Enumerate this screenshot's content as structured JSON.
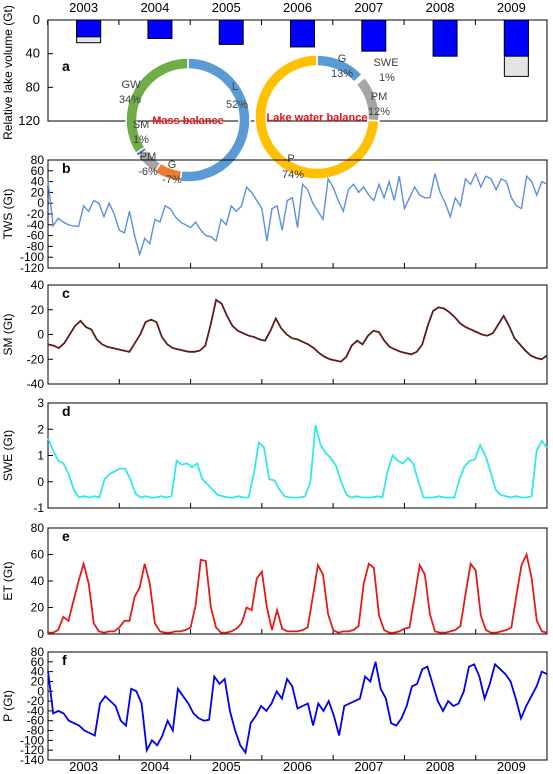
{
  "chart_data": [
    {
      "panel": "a",
      "type": "bar",
      "ylabel": "Relative lake volume (Gt)",
      "ylim": [
        0,
        120
      ],
      "yticks": [
        0,
        40,
        80,
        120
      ],
      "categories": [
        "2003",
        "2004",
        "2005",
        "2006",
        "2007",
        "2008",
        "2009"
      ],
      "series": [
        {
          "values": [
            20,
            22,
            29,
            32,
            37,
            43,
            43
          ],
          "color": "#0000ff"
        },
        {
          "values": [
            7,
            0,
            0,
            0,
            0,
            0,
            24
          ],
          "color": "#e4e4e4"
        }
      ],
      "pies": [
        {
          "title": "Mass balance",
          "title_color": "#e3141b",
          "slices": [
            {
              "label": "L",
              "pct_label": "52%",
              "value": 52,
              "color": "#5b9bd5"
            },
            {
              "label": "G",
              "pct_label": "-7%",
              "value": 7,
              "color": "#ed7d31"
            },
            {
              "label": "PM",
              "pct_label": "-6%",
              "value": 6,
              "color": "#a5a5a5"
            },
            {
              "label": "SM",
              "pct_label": "1%",
              "value": 1,
              "color": "#4472c4"
            },
            {
              "label": "GW",
              "pct_label": "34%",
              "value": 34,
              "color": "#70ad47"
            }
          ]
        },
        {
          "title": "Lake water balance",
          "title_color": "#e3141b",
          "slices": [
            {
              "label": "G",
              "pct_label": "13%",
              "value": 13,
              "color": "#5b9bd5"
            },
            {
              "label": "SWE",
              "pct_label": "1%",
              "value": 1,
              "color": "#ffffff"
            },
            {
              "label": "PM",
              "pct_label": "12%",
              "value": 12,
              "color": "#a5a5a5"
            },
            {
              "label": "P",
              "pct_label": "74%",
              "value": 74,
              "color": "#ffc000"
            }
          ]
        }
      ]
    },
    {
      "panel": "b",
      "type": "line",
      "ylabel": "TWS (Gt)",
      "ylim": [
        -120,
        80
      ],
      "yticks": [
        80,
        60,
        40,
        20,
        0,
        -20,
        -40,
        -60,
        -80,
        -100,
        -120
      ],
      "color": "#5b8fe0",
      "values": [
        41,
        -42,
        -28,
        -35,
        -40,
        -42,
        -43,
        -5,
        -15,
        5,
        0,
        -25,
        0,
        -20,
        -50,
        -55,
        -15,
        -60,
        -95,
        -65,
        -75,
        -30,
        -35,
        -5,
        -10,
        -25,
        -35,
        -40,
        -45,
        -35,
        -50,
        -60,
        -62,
        -70,
        -30,
        -40,
        -5,
        -15,
        -5,
        30,
        20,
        5,
        -10,
        -70,
        -10,
        -5,
        -50,
        5,
        10,
        -45,
        35,
        25,
        0,
        -15,
        -30,
        45,
        30,
        5,
        -15,
        25,
        35,
        20,
        30,
        15,
        5,
        35,
        10,
        40,
        5,
        50,
        -10,
        10,
        30,
        15,
        10,
        10,
        55,
        20,
        0,
        -25,
        10,
        -5,
        45,
        35,
        55,
        30,
        50,
        45,
        25,
        45,
        40,
        10,
        -5,
        -10,
        50,
        40,
        15,
        40,
        35
      ]
    },
    {
      "panel": "c",
      "type": "line",
      "ylabel": "SM (Gt)",
      "ylim": [
        -40,
        40
      ],
      "yticks": [
        40,
        20,
        0,
        -20,
        -40
      ],
      "color": "#5c1c1c",
      "values": [
        -8,
        -9,
        -11,
        -7,
        0,
        7,
        11,
        6,
        4,
        -4,
        -8,
        -10,
        -11,
        -12,
        -13,
        -14,
        -7,
        0,
        10,
        12,
        10,
        -2,
        -8,
        -11,
        -12,
        -13,
        -14,
        -14,
        -13,
        -9,
        8,
        28,
        25,
        15,
        7,
        3,
        1,
        -1,
        -2,
        -4,
        -5,
        3,
        13,
        5,
        0,
        -3,
        -4,
        -6,
        -8,
        -11,
        -15,
        -18,
        -20,
        -21,
        -22,
        -18,
        -9,
        -5,
        -8,
        -1,
        3,
        2,
        -5,
        -10,
        -12,
        -14,
        -15,
        -16,
        -14,
        -8,
        7,
        19,
        22,
        21,
        18,
        14,
        9,
        6,
        4,
        2,
        0,
        -1,
        1,
        8,
        15,
        7,
        -3,
        -8,
        -13,
        -17,
        -19,
        -20,
        -17
      ]
    },
    {
      "panel": "d",
      "type": "line",
      "ylabel": "SWE (Gt)",
      "ylim": [
        -1,
        3
      ],
      "yticks": [
        3,
        2,
        1,
        0,
        -1
      ],
      "color": "#33e8e8",
      "values": [
        1.65,
        1.2,
        0.8,
        0.7,
        0.3,
        -0.3,
        -0.6,
        -0.55,
        -0.6,
        -0.55,
        -0.6,
        0.1,
        0.3,
        0.4,
        0.5,
        0.5,
        0.1,
        -0.45,
        -0.6,
        -0.55,
        -0.6,
        -0.6,
        -0.55,
        -0.6,
        -0.55,
        0.8,
        0.65,
        0.7,
        0.55,
        0.7,
        0.1,
        -0.1,
        -0.3,
        -0.5,
        -0.55,
        -0.6,
        -0.6,
        -0.55,
        -0.6,
        -0.6,
        0.3,
        1.5,
        1.3,
        0.1,
        0.05,
        -0.3,
        -0.55,
        -0.6,
        -0.6,
        -0.6,
        -0.55,
        0.0,
        2.15,
        1.4,
        1.1,
        0.9,
        0.6,
        0.0,
        -0.5,
        -0.6,
        -0.55,
        -0.6,
        -0.6,
        -0.6,
        -0.55,
        -0.6,
        0.4,
        1.0,
        0.8,
        0.7,
        0.9,
        0.7,
        0.0,
        -0.6,
        -0.6,
        -0.6,
        -0.55,
        -0.6,
        -0.6,
        -0.6,
        0.1,
        0.6,
        0.8,
        0.85,
        1.4,
        1.0,
        0.4,
        -0.3,
        -0.5,
        -0.55,
        -0.6,
        -0.55,
        -0.6,
        -0.6,
        -0.55,
        1.2,
        1.55,
        1.3
      ]
    },
    {
      "panel": "e",
      "type": "line",
      "ylabel": "ET (Gt)",
      "ylim": [
        0,
        80
      ],
      "yticks": [
        80,
        60,
        40,
        20,
        0
      ],
      "color": "#e31b1b",
      "values": [
        1,
        1,
        3,
        13,
        10,
        25,
        40,
        53,
        38,
        8,
        2,
        1,
        2,
        2,
        5,
        10,
        10,
        28,
        35,
        53,
        38,
        8,
        2,
        1,
        1,
        2,
        2,
        3,
        5,
        22,
        56,
        55,
        20,
        5,
        1,
        1,
        2,
        4,
        8,
        20,
        18,
        42,
        47,
        20,
        3,
        18,
        4,
        2,
        2,
        2,
        3,
        5,
        28,
        52,
        45,
        15,
        3,
        1,
        2,
        2,
        3,
        6,
        38,
        53,
        50,
        14,
        3,
        1,
        1,
        2,
        4,
        5,
        28,
        52,
        45,
        15,
        2,
        1,
        1,
        2,
        3,
        6,
        30,
        53,
        48,
        14,
        3,
        1,
        1,
        2,
        3,
        5,
        29,
        52,
        60,
        42,
        10,
        2,
        1
      ]
    },
    {
      "panel": "f",
      "type": "line",
      "ylabel": "P (Gt)",
      "ylim": [
        -140,
        80
      ],
      "yticks": [
        80,
        60,
        40,
        20,
        0,
        -20,
        -40,
        -60,
        -80,
        -100,
        -120,
        -140
      ],
      "color": "#0000ee",
      "values": [
        41,
        -45,
        -40,
        -45,
        -60,
        -65,
        -70,
        -80,
        -85,
        -90,
        -25,
        -10,
        -20,
        -30,
        -60,
        -70,
        5,
        0,
        -25,
        -120,
        -100,
        -110,
        -90,
        -60,
        -80,
        5,
        -10,
        -25,
        -45,
        -55,
        -60,
        -58,
        30,
        15,
        25,
        -40,
        -80,
        -110,
        -125,
        -65,
        -50,
        -30,
        -40,
        -25,
        0,
        -15,
        25,
        10,
        -35,
        -30,
        -25,
        -70,
        -25,
        -40,
        -20,
        -50,
        -90,
        -30,
        -25,
        -20,
        -15,
        30,
        20,
        60,
        5,
        -15,
        -65,
        -70,
        -55,
        -30,
        10,
        15,
        45,
        50,
        15,
        -20,
        -40,
        -20,
        -30,
        -25,
        0,
        50,
        55,
        30,
        -15,
        15,
        55,
        45,
        35,
        20,
        -15,
        -55,
        -30,
        -10,
        10,
        40,
        35
      ]
    }
  ],
  "years": [
    "2003",
    "2004",
    "2005",
    "2006",
    "2007",
    "2008",
    "2009"
  ],
  "panel_letters": [
    "a",
    "b",
    "c",
    "d",
    "e",
    "f"
  ]
}
